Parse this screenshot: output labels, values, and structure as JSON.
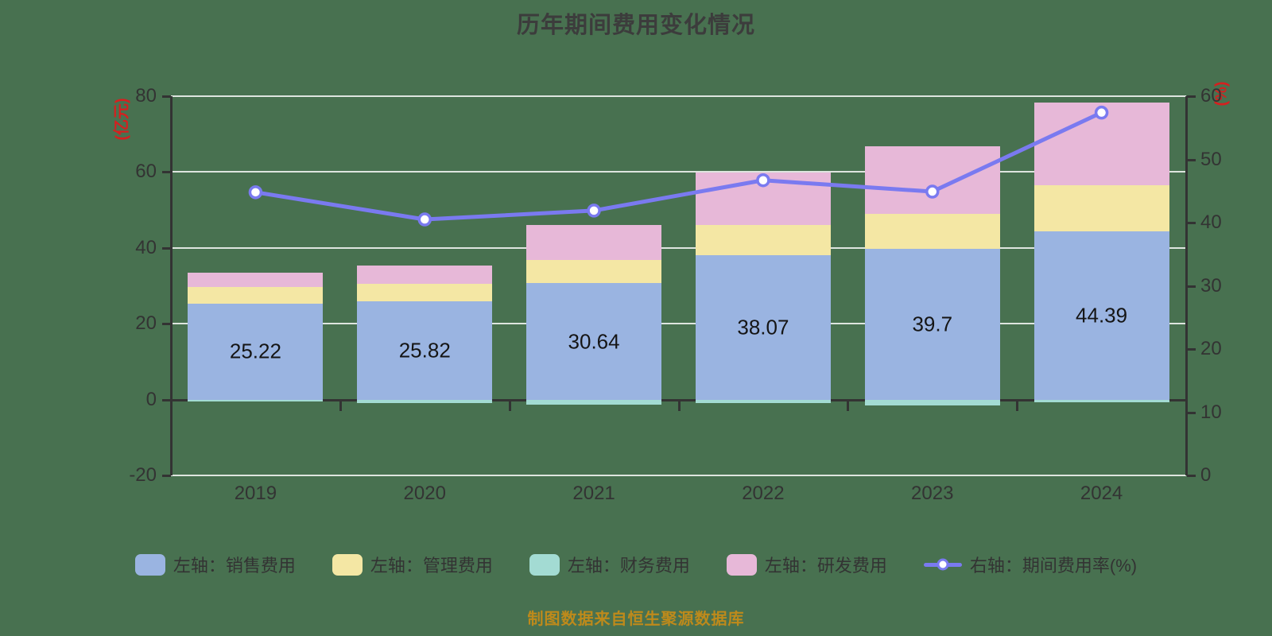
{
  "title": "历年期间费用变化情况",
  "footer": "制图数据来自恒生聚源数据库",
  "left_axis": {
    "name": "(亿元)",
    "ticks": [
      80,
      60,
      40,
      20,
      0,
      -20
    ],
    "min": -20,
    "max": 80
  },
  "right_axis": {
    "name": "(%)",
    "ticks": [
      60,
      50,
      40,
      30,
      20,
      10,
      0
    ],
    "min": 0,
    "max": 60
  },
  "legend": [
    {
      "key": "sales",
      "label": "左轴：销售费用",
      "type": "bar",
      "color": "#9ab4e1"
    },
    {
      "key": "admin",
      "label": "左轴：管理费用",
      "type": "bar",
      "color": "#f4e7a4"
    },
    {
      "key": "finance",
      "label": "左轴：财务费用",
      "type": "bar",
      "color": "#a3dbd3"
    },
    {
      "key": "rnd",
      "label": "左轴：研发费用",
      "type": "bar",
      "color": "#e7b8d8"
    },
    {
      "key": "ratio",
      "label": "右轴：期间费用率(%)",
      "type": "line",
      "color": "#7a7af0"
    }
  ],
  "chart_data": {
    "type": "bar",
    "subtype": "stacked bars with overlay line on secondary axis",
    "categories": [
      "2019",
      "2020",
      "2021",
      "2022",
      "2023",
      "2024"
    ],
    "series": [
      {
        "key": "sales",
        "name": "左轴：销售费用",
        "type": "bar",
        "stack": "total",
        "axis": "left",
        "color": "#9ab4e1",
        "values": [
          25.22,
          25.82,
          30.64,
          38.07,
          39.7,
          44.39
        ],
        "labels": [
          "25.22",
          "25.82",
          "30.64",
          "38.07",
          "39.7",
          "44.39"
        ],
        "labels_shown": true
      },
      {
        "key": "admin",
        "name": "左轴：管理费用",
        "type": "bar",
        "stack": "total",
        "axis": "left",
        "color": "#f4e7a4",
        "values": [
          4.5,
          4.6,
          6.2,
          8.0,
          9.3,
          12.1
        ],
        "labels_shown": false
      },
      {
        "key": "finance",
        "name": "左轴：财务费用",
        "type": "bar",
        "stack": "total",
        "axis": "left",
        "color": "#a3dbd3",
        "values": [
          -0.6,
          -0.9,
          -1.3,
          -1.0,
          -1.5,
          -0.8
        ],
        "labels_shown": false
      },
      {
        "key": "rnd",
        "name": "左轴：研发费用",
        "type": "bar",
        "stack": "total",
        "axis": "left",
        "color": "#e7b8d8",
        "values": [
          3.8,
          5.0,
          9.2,
          13.8,
          17.8,
          21.8
        ],
        "labels_shown": false
      },
      {
        "key": "ratio",
        "name": "右轴：期间费用率(%)",
        "type": "line",
        "axis": "right",
        "color": "#7a7af0",
        "marker": "circle-white-fill",
        "values": [
          44.8,
          40.5,
          41.9,
          46.7,
          44.9,
          57.4
        ],
        "labels_shown": false
      }
    ],
    "left_ylim": [
      -20,
      80
    ],
    "right_ylim": [
      0,
      60
    ],
    "gridlines_left_values": [
      80,
      60,
      40,
      20,
      -20
    ],
    "grid_on": true,
    "legend_position": "bottom"
  },
  "colors": {
    "background": "#487150",
    "title_text": "#3c3c3c",
    "axis_text": "#333333",
    "axis_name_text": "#d61f1f",
    "axis_line": "#333333",
    "grid_line": "#ffffff",
    "bar_label_text": "#151515",
    "footer_text": "#be8a1b",
    "line_series": "#7a7af0"
  }
}
